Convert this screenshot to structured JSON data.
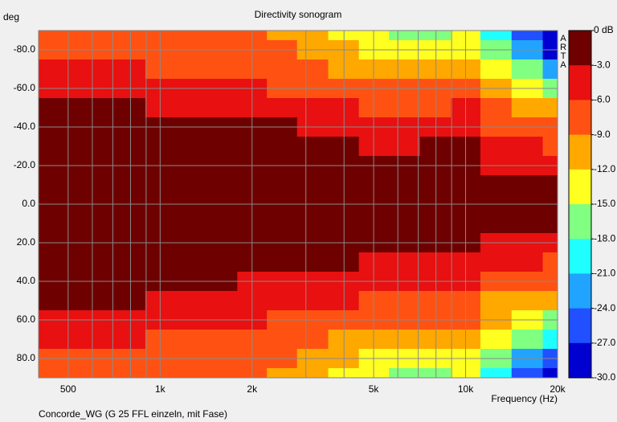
{
  "chart_data": {
    "type": "heatmap",
    "title": "Directivity sonogram",
    "ylabel": "deg",
    "xlabel": "Frequency (Hz)",
    "footer": "Concorde_WG (G 25 FFL einzeln, mit Fase)",
    "watermark": "ARTA",
    "xscale": "log",
    "xlim": [
      400,
      20000
    ],
    "xticks": [
      500,
      {
        "value": 1000,
        "label": "1k"
      },
      {
        "value": 2000,
        "label": "2k"
      },
      {
        "value": 5000,
        "label": "5k"
      },
      {
        "value": 10000,
        "label": "10k"
      },
      {
        "value": 20000,
        "label": "20k"
      }
    ],
    "xminorticks": [
      600,
      700,
      800,
      900,
      3000,
      4000,
      6000,
      7000,
      8000,
      9000
    ],
    "ylim": [
      -90,
      90
    ],
    "yticks": [
      {
        "value": -80,
        "label": "-80.0"
      },
      {
        "value": -60,
        "label": "-60.0"
      },
      {
        "value": -40,
        "label": "-40.0"
      },
      {
        "value": -20,
        "label": "-20.0"
      },
      {
        "value": 0,
        "label": "0.0"
      },
      {
        "value": 20,
        "label": "20.0"
      },
      {
        "value": 40,
        "label": "40.0"
      },
      {
        "value": 60,
        "label": "60.0"
      },
      {
        "value": 80,
        "label": "80.0"
      }
    ],
    "x": [
      400,
      500,
      630,
      800,
      1000,
      1250,
      1600,
      2000,
      2500,
      3150,
      4000,
      5000,
      6300,
      8000,
      10000,
      12500,
      16000,
      20000
    ],
    "y": [
      -90,
      -80,
      -70,
      -60,
      -50,
      -40,
      -30,
      -20,
      -10,
      0,
      10,
      20,
      30,
      40,
      50,
      60,
      70,
      80,
      90
    ],
    "z": [
      [
        -6.5,
        -7,
        -7,
        -7,
        -7.5,
        -7.5,
        -8,
        -8.5,
        -9.5,
        -11,
        -12.5,
        -13.5,
        -15.5,
        -15.5,
        -14,
        -19.5,
        -26,
        -29.5
      ],
      [
        -6,
        -6.5,
        -6.5,
        -7,
        -7,
        -7,
        -7.5,
        -8,
        -8.5,
        -9.5,
        -11.5,
        -12.5,
        -13.5,
        -14,
        -13,
        -17.5,
        -23,
        -27
      ],
      [
        -5,
        -5,
        -5,
        -5.5,
        -6,
        -6,
        -6.5,
        -7,
        -7.5,
        -8.5,
        -9.5,
        -10,
        -10.5,
        -10.5,
        -10,
        -14,
        -17.5,
        -21
      ],
      [
        -4,
        -4,
        -4,
        -4.5,
        -5,
        -5,
        -5.5,
        -5.5,
        -6,
        -6.5,
        -7,
        -7.5,
        -8,
        -7.5,
        -7,
        -11,
        -13,
        -15.5
      ],
      [
        -2.5,
        -2,
        -2,
        -2.5,
        -3.5,
        -3.5,
        -4,
        -4,
        -4.5,
        -5,
        -5.5,
        -6,
        -6.5,
        -6,
        -5.5,
        -8.5,
        -10,
        -11.5
      ],
      [
        -1.5,
        -1.5,
        -1.5,
        -1.5,
        -2,
        -2,
        -2.5,
        -2.5,
        -2.5,
        -3.5,
        -4,
        -4.5,
        -4.5,
        -4,
        -3.5,
        -6.5,
        -7.5,
        -8.5
      ],
      [
        -1,
        -1,
        -1,
        -1,
        -1,
        -1.5,
        -1.5,
        -1.5,
        -1.5,
        -2,
        -2.5,
        -3,
        -3.5,
        -2.5,
        -2.5,
        -5,
        -5.5,
        -6.5
      ],
      [
        -0.5,
        -0.5,
        -0.5,
        -0.5,
        -0.5,
        -1,
        -1,
        -1,
        -1,
        -1,
        -1.5,
        -1.5,
        -2,
        -1.5,
        -1.5,
        -3.5,
        -3.5,
        -4.5
      ],
      [
        0,
        0,
        0,
        0,
        0,
        0,
        0,
        0,
        0,
        0,
        0,
        -1,
        -1,
        -1,
        -1,
        -1.5,
        -2,
        -2.5
      ],
      [
        0,
        0,
        0,
        0,
        0,
        0,
        0,
        0,
        0,
        0,
        0,
        0,
        0,
        0,
        0,
        -1,
        -1,
        -2
      ],
      [
        0,
        0,
        0,
        0,
        0,
        0,
        0,
        0,
        0,
        0,
        0,
        -1,
        -1,
        -1,
        -1,
        -1.5,
        -2,
        -2.5
      ],
      [
        -0.5,
        -0.5,
        -0.5,
        -0.5,
        -0.5,
        -1,
        -1,
        -1,
        -1,
        -1,
        -1.5,
        -1.5,
        -2,
        -2,
        -2,
        -3.5,
        -4,
        -4.5
      ],
      [
        -1,
        -1,
        -1,
        -1,
        -1,
        -1.5,
        -1.5,
        -1.5,
        -2,
        -2,
        -2.5,
        -3,
        -3.5,
        -3,
        -3,
        -5,
        -5.5,
        -6
      ],
      [
        -1.5,
        -1.5,
        -1.5,
        -1.5,
        -2,
        -2,
        -2.5,
        -3,
        -3,
        -3.5,
        -4,
        -4.5,
        -5,
        -4.5,
        -4.5,
        -7,
        -7.5,
        -8
      ],
      [
        -2,
        -2,
        -2,
        -2.5,
        -3.5,
        -3.5,
        -4,
        -4,
        -4.5,
        -5,
        -5.5,
        -6,
        -6.5,
        -6,
        -6,
        -9,
        -10,
        -11
      ],
      [
        -3.5,
        -3.5,
        -4,
        -4.5,
        -5,
        -5,
        -5.5,
        -5.5,
        -6,
        -6.5,
        -7,
        -7.5,
        -8,
        -7.5,
        -8,
        -11,
        -13,
        -15
      ],
      [
        -4.5,
        -5,
        -5,
        -5.5,
        -6,
        -6,
        -6.5,
        -7,
        -7.5,
        -8,
        -9,
        -9.5,
        -10,
        -10,
        -10.5,
        -14,
        -17,
        -20
      ],
      [
        -6,
        -6.5,
        -6.5,
        -7,
        -7,
        -7,
        -7.5,
        -8,
        -8.5,
        -9.5,
        -11,
        -12,
        -13,
        -13.5,
        -13,
        -17,
        -22,
        -26
      ],
      [
        -6.5,
        -7,
        -7,
        -7,
        -7.5,
        -7.5,
        -8,
        -8.5,
        -9,
        -10.5,
        -12,
        -13,
        -15,
        -15,
        -14,
        -19,
        -25,
        -29
      ]
    ],
    "zlim": [
      0,
      -30
    ],
    "zticks": [
      {
        "value": 0,
        "label": "0 dB"
      },
      {
        "value": -3,
        "label": "-3.0"
      },
      {
        "value": -6,
        "label": "-6.0"
      },
      {
        "value": -9,
        "label": "-9.0"
      },
      {
        "value": -12,
        "label": "-12.0"
      },
      {
        "value": -15,
        "label": "-15.0"
      },
      {
        "value": -18,
        "label": "-18.0"
      },
      {
        "value": -21,
        "label": "-21.0"
      },
      {
        "value": -24,
        "label": "-24.0"
      },
      {
        "value": -27,
        "label": "-27.0"
      },
      {
        "value": -30,
        "label": "-30.0"
      }
    ],
    "colors": [
      "#6e0000",
      "#e81010",
      "#ff5212",
      "#ffa800",
      "#ffff20",
      "#80ff80",
      "#20ffff",
      "#20a4ff",
      "#2050ff",
      "#0000d0"
    ],
    "grid": true
  }
}
